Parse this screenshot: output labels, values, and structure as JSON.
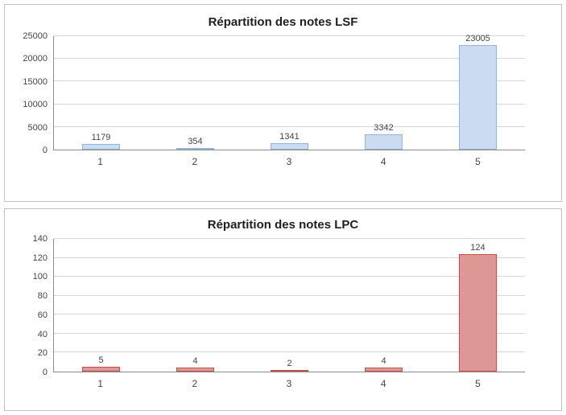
{
  "chart_data": [
    {
      "type": "bar",
      "title": "Répartition des notes LSF",
      "categories": [
        "1",
        "2",
        "3",
        "4",
        "5"
      ],
      "values": [
        1179,
        354,
        1341,
        3342,
        23005
      ],
      "xlabel": "",
      "ylabel": "",
      "ylim": [
        0,
        25000
      ],
      "ytick_step": 5000,
      "grid": true,
      "legend": false,
      "bar_fill": "#cbdcf0",
      "bar_border": "#95b3d7"
    },
    {
      "type": "bar",
      "title": "Répartition des notes LPC",
      "categories": [
        "1",
        "2",
        "3",
        "4",
        "5"
      ],
      "values": [
        5,
        4,
        2,
        4,
        124
      ],
      "xlabel": "",
      "ylabel": "",
      "ylim": [
        0,
        140
      ],
      "ytick_step": 20,
      "grid": true,
      "legend": false,
      "bar_fill": "#dd9795",
      "bar_border": "#c0504d"
    }
  ]
}
